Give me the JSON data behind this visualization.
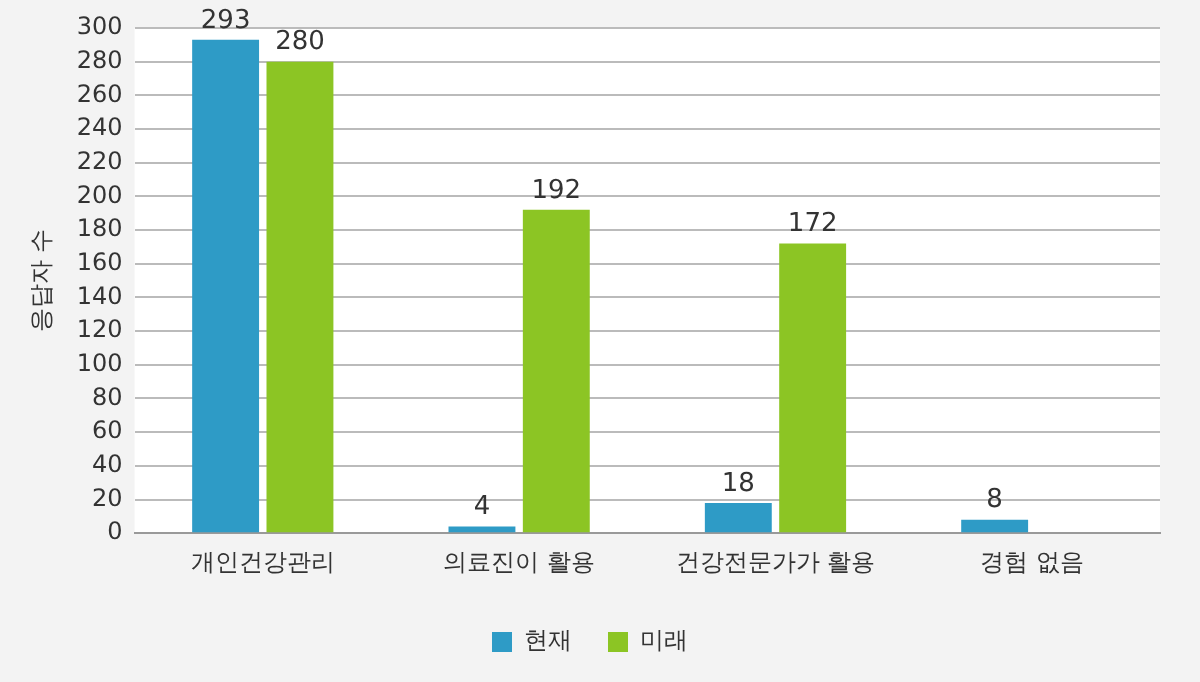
{
  "chart_data": {
    "type": "bar",
    "ylabel": "응답자 수",
    "categories": [
      "개인건강관리",
      "의료진이 활용",
      "건강전문가가 활용",
      "경험 없음"
    ],
    "series": [
      {
        "name": "현재",
        "color": "#2e9bc6",
        "values": [
          293,
          4,
          18,
          8
        ]
      },
      {
        "name": "미래",
        "color": "#8cc524",
        "values": [
          280,
          192,
          172,
          null
        ]
      }
    ],
    "ylim": [
      0,
      300
    ],
    "yticks": [
      0,
      20,
      40,
      60,
      80,
      100,
      120,
      140,
      160,
      180,
      200,
      220,
      240,
      260,
      280,
      300
    ],
    "grid": "y",
    "legend": "bottom",
    "data_labels": true
  }
}
